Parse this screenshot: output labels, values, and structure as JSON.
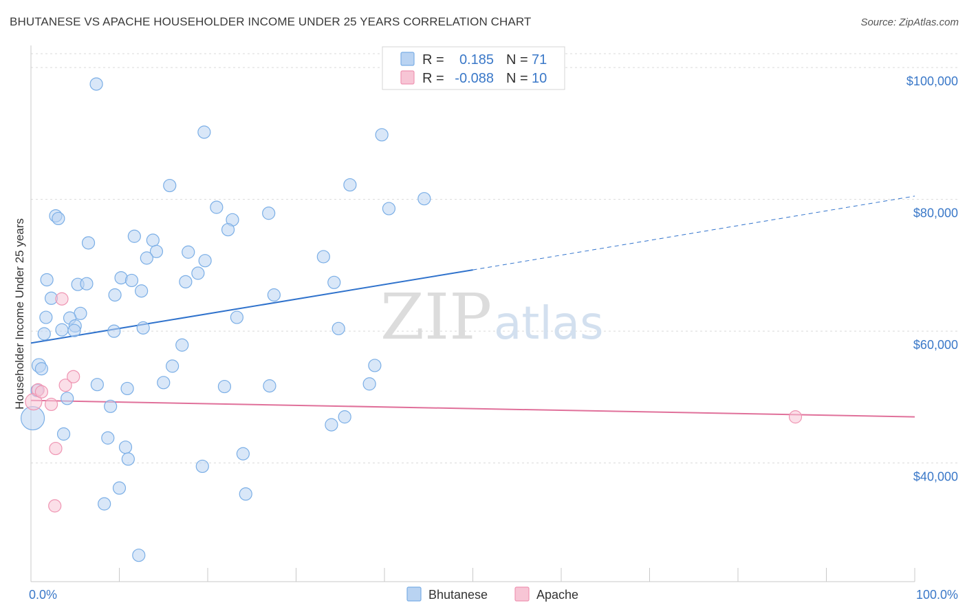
{
  "title": "BHUTANESE VS APACHE HOUSEHOLDER INCOME UNDER 25 YEARS CORRELATION CHART",
  "source": "Source: ZipAtlas.com",
  "watermark": {
    "zip": "ZIP",
    "atlas": "atlas"
  },
  "chart_data": {
    "type": "scatter",
    "xlabel": "",
    "ylabel": "Householder Income Under 25 years",
    "xlim": [
      0,
      100
    ],
    "ylim": [
      22000,
      102000
    ],
    "x_tick_labels": {
      "min": "0.0%",
      "max": "100.0%"
    },
    "y_ticks": [
      {
        "value": 100000,
        "label": "$100,000"
      },
      {
        "value": 80000,
        "label": "$80,000"
      },
      {
        "value": 60000,
        "label": "$60,000"
      },
      {
        "value": 40000,
        "label": "$40,000"
      }
    ],
    "legend": {
      "r_label": "R =",
      "n_label": "N =",
      "entries": [
        {
          "name": "Bhutanese",
          "r": "0.185",
          "n": "71",
          "color": "#7aaee6",
          "fill": "#b9d3f2"
        },
        {
          "name": "Apache",
          "r": "-0.088",
          "n": "10",
          "color": "#ef94b2",
          "fill": "#f7c5d5"
        }
      ]
    },
    "series": [
      {
        "name": "Bhutanese",
        "color": "#7aaee6",
        "trend": {
          "x0": 0,
          "y0": 58200,
          "x1": 50,
          "y1": 69300,
          "x_ext": 100,
          "y_ext": 80500,
          "color": "#2f72cc"
        },
        "points": [
          [
            7.4,
            97500
          ],
          [
            19.6,
            90200
          ],
          [
            39.7,
            89800
          ],
          [
            15.7,
            82100
          ],
          [
            36.1,
            82200
          ],
          [
            44.5,
            80100
          ],
          [
            21.0,
            78800
          ],
          [
            26.9,
            77900
          ],
          [
            40.5,
            78600
          ],
          [
            2.8,
            77500
          ],
          [
            3.1,
            77100
          ],
          [
            22.8,
            76900
          ],
          [
            22.3,
            75400
          ],
          [
            11.7,
            74400
          ],
          [
            13.8,
            73800
          ],
          [
            6.5,
            73400
          ],
          [
            14.2,
            72100
          ],
          [
            17.8,
            72000
          ],
          [
            13.1,
            71100
          ],
          [
            33.1,
            71300
          ],
          [
            19.7,
            70700
          ],
          [
            18.9,
            68800
          ],
          [
            10.2,
            68100
          ],
          [
            1.8,
            67800
          ],
          [
            11.4,
            67700
          ],
          [
            17.5,
            67500
          ],
          [
            5.3,
            67100
          ],
          [
            6.3,
            67200
          ],
          [
            34.3,
            67400
          ],
          [
            12.5,
            66100
          ],
          [
            9.5,
            65500
          ],
          [
            27.5,
            65500
          ],
          [
            2.3,
            65000
          ],
          [
            5.6,
            62700
          ],
          [
            1.7,
            62100
          ],
          [
            4.4,
            62000
          ],
          [
            23.3,
            62100
          ],
          [
            5.0,
            60800
          ],
          [
            3.5,
            60200
          ],
          [
            12.7,
            60500
          ],
          [
            4.9,
            60100
          ],
          [
            9.4,
            60000
          ],
          [
            34.8,
            60400
          ],
          [
            1.5,
            59600
          ],
          [
            17.1,
            57900
          ],
          [
            0.9,
            54800
          ],
          [
            1.2,
            54300
          ],
          [
            16.0,
            54700
          ],
          [
            38.9,
            54800
          ],
          [
            15.0,
            52200
          ],
          [
            7.5,
            51900
          ],
          [
            21.9,
            51600
          ],
          [
            27.0,
            51700
          ],
          [
            10.9,
            51300
          ],
          [
            38.3,
            52000
          ],
          [
            0.7,
            51000
          ],
          [
            4.1,
            49800
          ],
          [
            9.0,
            48600
          ],
          [
            35.5,
            47000
          ],
          [
            34.0,
            45800
          ],
          [
            3.7,
            44400
          ],
          [
            8.7,
            43800
          ],
          [
            10.7,
            42400
          ],
          [
            24.0,
            41400
          ],
          [
            11.0,
            40600
          ],
          [
            19.4,
            39500
          ],
          [
            10.0,
            36200
          ],
          [
            24.3,
            35300
          ],
          [
            8.3,
            33800
          ],
          [
            12.2,
            26000
          ],
          [
            0.2,
            46800
          ]
        ]
      },
      {
        "name": "Apache",
        "color": "#ef94b2",
        "trend": {
          "x0": 0,
          "y0": 49500,
          "x1": 100,
          "y1": 47000,
          "color": "#e0709a"
        },
        "points": [
          [
            0.3,
            49300
          ],
          [
            0.8,
            51100
          ],
          [
            1.2,
            50800
          ],
          [
            3.5,
            64900
          ],
          [
            2.3,
            48900
          ],
          [
            3.9,
            51800
          ],
          [
            4.8,
            53100
          ],
          [
            2.8,
            42200
          ],
          [
            2.7,
            33500
          ],
          [
            86.5,
            47000
          ]
        ]
      }
    ]
  }
}
